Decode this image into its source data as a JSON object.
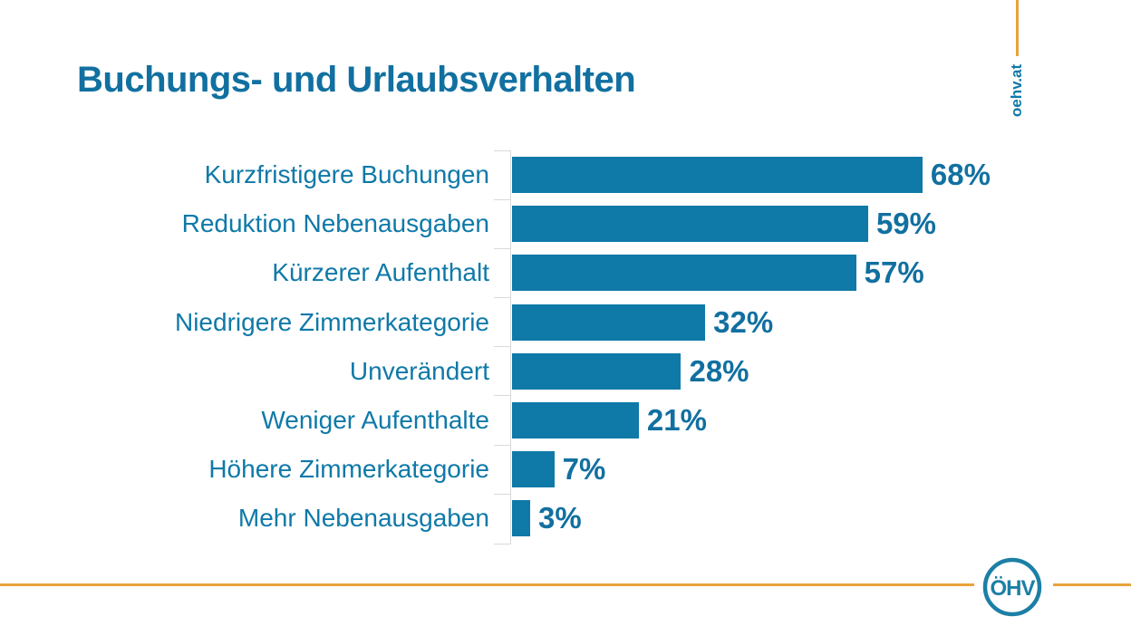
{
  "slide": {
    "title": "Buchungs- und Urlaubsverhalten",
    "watermark": "oehv.at",
    "logo_text": "ÖHV"
  },
  "colors": {
    "accent_teal": "#0F79A8",
    "title_teal": "#1170A0",
    "accent_orange": "#E8A33C",
    "axis_gray": "#D9D9D9",
    "background": "#FFFFFF"
  },
  "chart_data": {
    "type": "bar",
    "orientation": "horizontal",
    "title": "Buchungs- und Urlaubsverhalten",
    "xlabel": "",
    "ylabel": "",
    "xlim": [
      0,
      100
    ],
    "grid": false,
    "legend": false,
    "bar_color": "#0F79A8",
    "categories": [
      "Kurzfristigere Buchungen",
      "Reduktion Nebenausgaben",
      "Kürzerer Aufenthalt",
      "Niedrigere Zimmerkategorie",
      "Unverändert",
      "Weniger Aufenthalte",
      "Höhere Zimmerkategorie",
      "Mehr Nebenausgaben"
    ],
    "values": [
      68,
      59,
      57,
      32,
      28,
      21,
      7,
      3
    ],
    "value_labels": [
      "68%",
      "59%",
      "57%",
      "32%",
      "28%",
      "21%",
      "7%",
      "3%"
    ]
  }
}
